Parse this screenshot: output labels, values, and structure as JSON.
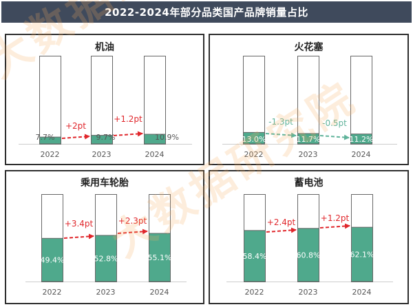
{
  "title": "2022-2024年部分品类国产品牌销量占比",
  "colors": {
    "title_bg": "#3f4a5c",
    "bar_fill": "#4fa98c",
    "bar_outline": "#666666",
    "increase_arrow": "#e0262b",
    "decrease_arrow": "#5fb39a"
  },
  "watermark": "大数据研究院",
  "chart_data": [
    {
      "type": "bar",
      "title": "机油",
      "categories": [
        "2022",
        "2023",
        "2024"
      ],
      "values": [
        7.7,
        9.7,
        10.9
      ],
      "value_labels": [
        "7.7%",
        "9.7%",
        "10.9%"
      ],
      "changes": [
        "+2pt",
        "+1.2pt"
      ],
      "ylim": [
        0,
        100
      ]
    },
    {
      "type": "bar",
      "title": "火花塞",
      "categories": [
        "2022",
        "2023",
        "2024"
      ],
      "values": [
        13.0,
        11.7,
        11.2
      ],
      "value_labels": [
        "13.0%",
        "11.7%",
        "11.2%"
      ],
      "changes": [
        "-1.3pt",
        "-0.5pt"
      ],
      "ylim": [
        0,
        100
      ]
    },
    {
      "type": "bar",
      "title": "乘用车轮胎",
      "categories": [
        "2022",
        "2023",
        "2024"
      ],
      "values": [
        49.4,
        52.8,
        55.1
      ],
      "value_labels": [
        "49.4%",
        "52.8%",
        "55.1%"
      ],
      "changes": [
        "+3.4pt",
        "+2.3pt"
      ],
      "ylim": [
        0,
        100
      ]
    },
    {
      "type": "bar",
      "title": "蓄电池",
      "categories": [
        "2022",
        "2023",
        "2024"
      ],
      "values": [
        58.4,
        60.8,
        62.1
      ],
      "value_labels": [
        "58.4%",
        "60.8%",
        "62.1%"
      ],
      "changes": [
        "+2.4pt",
        "+1.2pt"
      ],
      "ylim": [
        0,
        100
      ]
    }
  ]
}
